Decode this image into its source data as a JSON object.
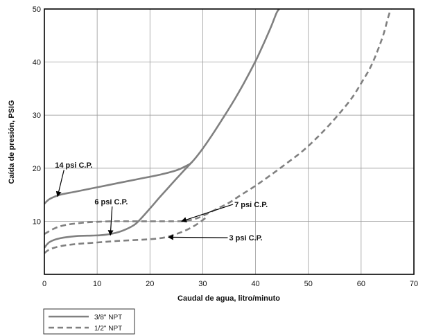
{
  "chart_data": {
    "type": "line",
    "xlabel": "Caudal de agua, litro/minuto",
    "ylabel": "Caída de presión, PSIG",
    "xlim": [
      0,
      70
    ],
    "ylim": [
      0,
      50
    ],
    "x_ticks": [
      0,
      10,
      20,
      30,
      40,
      50,
      60,
      70
    ],
    "y_ticks": [
      10,
      20,
      30,
      40,
      50
    ],
    "grid": true,
    "legend_position": "bottom-left",
    "series": [
      {
        "name": "3/8\" NPT",
        "style": "solid",
        "color": "#808080",
        "curves": [
          [
            [
              0,
              13.3
            ],
            [
              1,
              14.2
            ],
            [
              3,
              15.0
            ],
            [
              6,
              15.6
            ],
            [
              10,
              16.4
            ],
            [
              14,
              17.2
            ],
            [
              18,
              18.0
            ],
            [
              22,
              18.8
            ],
            [
              25,
              19.6
            ],
            [
              27,
              20.5
            ],
            [
              28,
              21.2
            ],
            [
              30,
              23.7
            ],
            [
              32,
              26.6
            ],
            [
              34,
              29.7
            ],
            [
              36,
              32.9
            ],
            [
              38,
              36.4
            ],
            [
              40,
              40.2
            ],
            [
              41,
              42.3
            ],
            [
              42,
              44.5
            ],
            [
              43,
              46.8
            ],
            [
              44,
              49.3
            ],
            [
              44.5,
              50
            ]
          ],
          [
            [
              0,
              5.0
            ],
            [
              1,
              6.1
            ],
            [
              3,
              6.8
            ],
            [
              6,
              7.2
            ],
            [
              9,
              7.3
            ],
            [
              11,
              7.4
            ],
            [
              13,
              7.7
            ],
            [
              15,
              8.3
            ],
            [
              17,
              9.3
            ],
            [
              18,
              10.2
            ],
            [
              20,
              12.4
            ],
            [
              22,
              14.7
            ],
            [
              24,
              16.9
            ],
            [
              26,
              19.1
            ],
            [
              28,
              21.2
            ]
          ]
        ]
      },
      {
        "name": "1/2\" NPT",
        "style": "dashed",
        "color": "#808080",
        "curves": [
          [
            [
              0,
              7.6
            ],
            [
              2,
              8.7
            ],
            [
              4,
              9.3
            ],
            [
              7,
              9.7
            ],
            [
              10,
              9.9
            ],
            [
              13,
              10.0
            ],
            [
              17,
              10.0
            ],
            [
              21,
              10.0
            ],
            [
              25,
              10.0
            ],
            [
              27,
              10.1
            ],
            [
              29,
              10.6
            ],
            [
              31,
              11.5
            ],
            [
              33,
              12.5
            ],
            [
              35,
              13.5
            ],
            [
              37,
              14.8
            ],
            [
              40,
              16.7
            ],
            [
              43,
              18.8
            ],
            [
              46,
              21.0
            ],
            [
              49,
              23.3
            ],
            [
              52,
              26.1
            ],
            [
              55,
              29.3
            ],
            [
              58,
              32.9
            ],
            [
              60,
              36.0
            ],
            [
              62,
              39.5
            ],
            [
              64,
              44.5
            ],
            [
              65,
              48.0
            ],
            [
              65.6,
              50
            ]
          ],
          [
            [
              0,
              4.0
            ],
            [
              1,
              4.7
            ],
            [
              3,
              5.3
            ],
            [
              6,
              5.7
            ],
            [
              10,
              6.0
            ],
            [
              14,
              6.3
            ],
            [
              18,
              6.5
            ],
            [
              21,
              6.7
            ],
            [
              23,
              7.0
            ],
            [
              25,
              7.6
            ],
            [
              27,
              8.4
            ],
            [
              29,
              9.5
            ],
            [
              31,
              11.0
            ]
          ]
        ]
      }
    ],
    "annotations": [
      {
        "text": "14 psi C.P.",
        "label_x": 2,
        "label_y": 20.6,
        "arrow_to": [
          2.5,
          14.7
        ]
      },
      {
        "text": "6 psi C.P.",
        "label_x": 9.5,
        "label_y": 13.7,
        "arrow_to": [
          12.5,
          7.4
        ]
      },
      {
        "text": "7 psi C.P.",
        "label_x": 36,
        "label_y": 13.2,
        "arrow_to": [
          26,
          10.0
        ]
      },
      {
        "text": "3 psi C.P.",
        "label_x": 35,
        "label_y": 6.9,
        "arrow_to": [
          23.5,
          7.0
        ]
      }
    ]
  },
  "legend": {
    "items": [
      {
        "label": "3/8\" NPT",
        "style": "solid"
      },
      {
        "label": "1/2\" NPT",
        "style": "dashed"
      }
    ]
  }
}
